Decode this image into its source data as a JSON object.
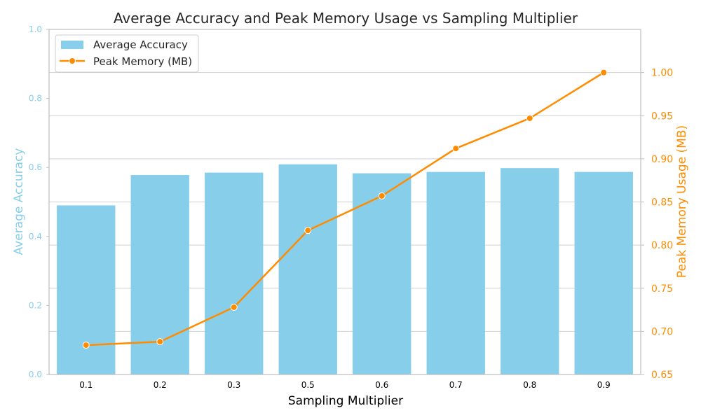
{
  "chart_data": {
    "type": "bar+line",
    "title": "Average Accuracy and Peak Memory Usage vs Sampling Multiplier",
    "xlabel": "Sampling Multiplier",
    "ylabel_left": "Average Accuracy",
    "ylabel_right": "Peak Memory Usage (MB)",
    "categories": [
      "0.1",
      "0.2",
      "0.3",
      "0.5",
      "0.6",
      "0.7",
      "0.8",
      "0.9"
    ],
    "series": [
      {
        "name": "Average Accuracy",
        "kind": "bar",
        "axis": "left",
        "color": "#87ceeb",
        "values": [
          0.49,
          0.578,
          0.585,
          0.609,
          0.583,
          0.587,
          0.598,
          0.587
        ]
      },
      {
        "name": "Peak Memory (MB)",
        "kind": "line",
        "axis": "right",
        "color": "#ff8c00",
        "values": [
          0.684,
          0.688,
          0.728,
          0.817,
          0.857,
          0.912,
          0.947,
          1.0
        ]
      }
    ],
    "ylim_left": [
      0,
      1.0
    ],
    "ylim_right": [
      0.65,
      1.05
    ],
    "yticks_left": [
      "0.0",
      "0.2",
      "0.4",
      "0.6",
      "0.8",
      "1.0"
    ],
    "yticks_right": [
      "0.65",
      "0.70",
      "0.75",
      "0.80",
      "0.85",
      "0.90",
      "0.95",
      "1.00"
    ],
    "grid": true,
    "legend_position": "top-left"
  }
}
